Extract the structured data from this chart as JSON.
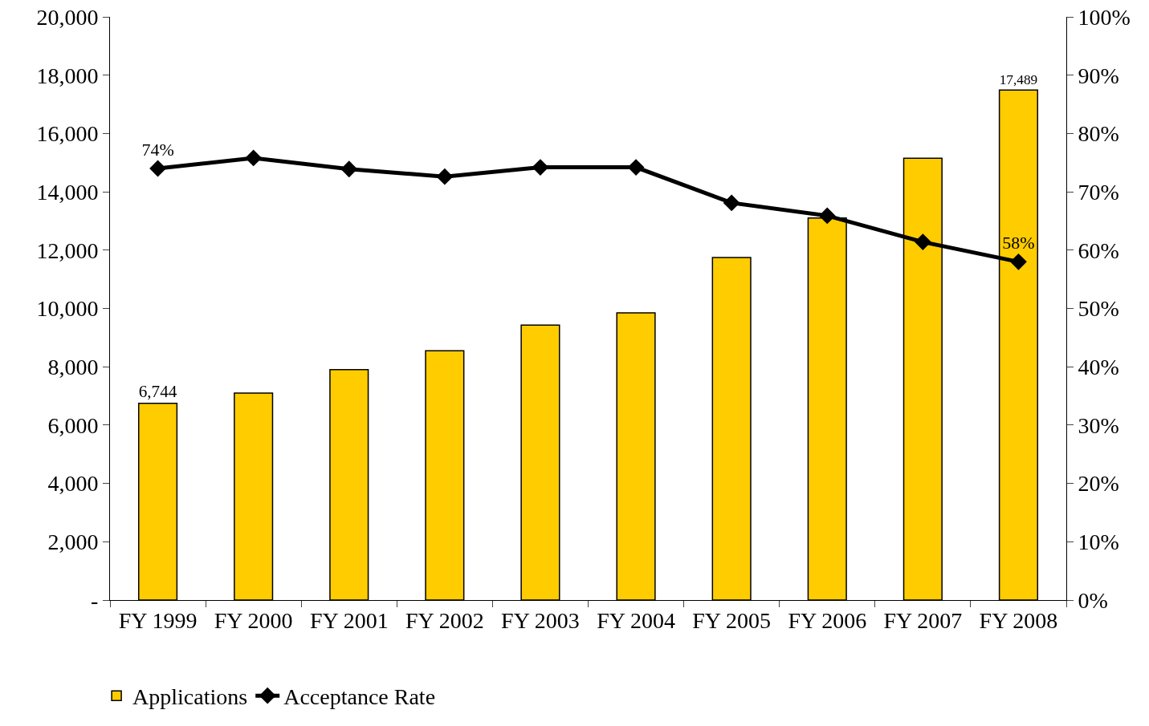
{
  "chart_data": {
    "type": "bar",
    "categories": [
      "FY 1999",
      "FY 2000",
      "FY 2001",
      "FY 2002",
      "FY 2003",
      "FY 2004",
      "FY 2005",
      "FY 2006",
      "FY 2007",
      "FY 2008"
    ],
    "series": [
      {
        "name": "Applications",
        "color": "#ffcc00",
        "values": [
          6744,
          7100,
          7900,
          8550,
          9430,
          9850,
          11750,
          13100,
          15150,
          17489
        ],
        "value_labels": [
          "6,744",
          null,
          null,
          null,
          null,
          null,
          null,
          null,
          null,
          "17,489"
        ]
      },
      {
        "name": "Acceptance Rate",
        "type": "line",
        "axis": "y2",
        "color": "#000000",
        "values": [
          74,
          75.8,
          73.9,
          72.6,
          74.2,
          74.2,
          68.1,
          65.9,
          61.4,
          58
        ],
        "value_labels": [
          "74%",
          null,
          null,
          null,
          null,
          null,
          null,
          null,
          null,
          "58%"
        ]
      }
    ],
    "ylim": [
      0,
      20000
    ],
    "yticks": [
      {
        "value": 0,
        "label": "-"
      },
      {
        "value": 2000,
        "label": "2,000"
      },
      {
        "value": 4000,
        "label": "4,000"
      },
      {
        "value": 6000,
        "label": "6,000"
      },
      {
        "value": 8000,
        "label": "8,000"
      },
      {
        "value": 10000,
        "label": "10,000"
      },
      {
        "value": 12000,
        "label": "12,000"
      },
      {
        "value": 14000,
        "label": "14,000"
      },
      {
        "value": 16000,
        "label": "16,000"
      },
      {
        "value": 18000,
        "label": "18,000"
      },
      {
        "value": 20000,
        "label": "20,000"
      }
    ],
    "y2lim": [
      0,
      100
    ],
    "y2ticks": [
      {
        "value": 0,
        "label": "0%"
      },
      {
        "value": 10,
        "label": "10%"
      },
      {
        "value": 20,
        "label": "20%"
      },
      {
        "value": 30,
        "label": "30%"
      },
      {
        "value": 40,
        "label": "40%"
      },
      {
        "value": 50,
        "label": "50%"
      },
      {
        "value": 60,
        "label": "60%"
      },
      {
        "value": 70,
        "label": "70%"
      },
      {
        "value": 80,
        "label": "80%"
      },
      {
        "value": 90,
        "label": "90%"
      },
      {
        "value": 100,
        "label": "100%"
      }
    ],
    "grid": false,
    "legend": "bottom left",
    "marker": "diamond",
    "line_style": "solid"
  }
}
